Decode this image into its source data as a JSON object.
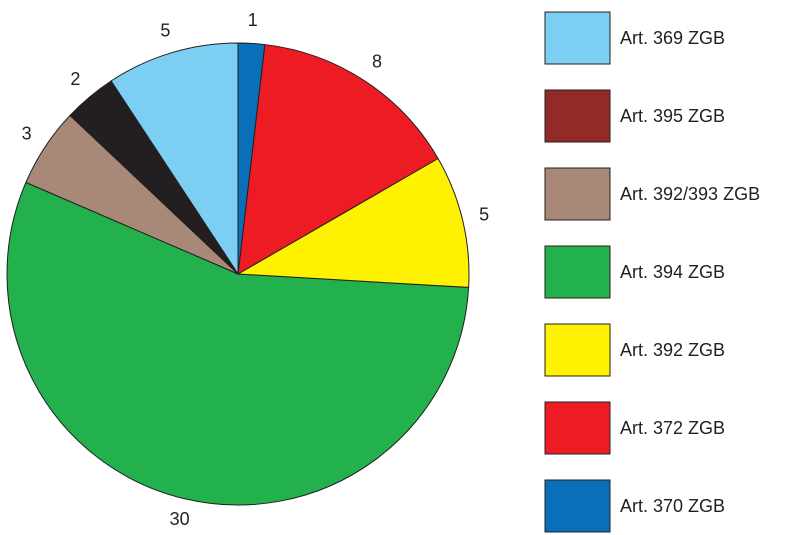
{
  "chart_data": {
    "type": "pie",
    "categories": [
      "Art. 369 ZGB",
      "Art. 395 ZGB",
      "Art. 392/393 ZGB",
      "Art. 394 ZGB",
      "Art. 392 ZGB",
      "Art. 372 ZGB",
      "Art. 370 ZGB"
    ],
    "values": [
      5,
      2,
      3,
      30,
      5,
      8,
      1
    ],
    "colors": [
      "#7ccff2",
      "#231f20",
      "#a88978",
      "#22b14c",
      "#fff200",
      "#ed1c24",
      "#0a6fb9"
    ],
    "legend_colors": [
      "#7ccff2",
      "#922a27",
      "#a88978",
      "#22b14c",
      "#fff200",
      "#ed1c24",
      "#0a6fb9"
    ],
    "legend": "right"
  }
}
